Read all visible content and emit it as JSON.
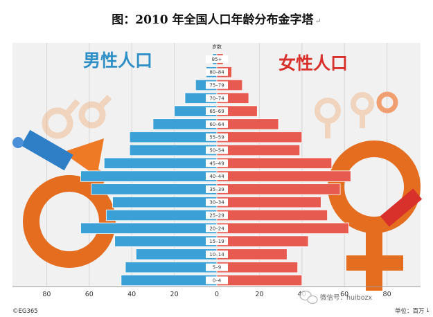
{
  "header": {
    "title": "图：2010 年全国人口年龄分布金字塔",
    "title_mark": "↵"
  },
  "labels": {
    "male": "男性人口",
    "female": "女性人口",
    "age_header": "岁数",
    "copyright": "©EG365",
    "unit": "单位：百万",
    "watermark": "微信号：huibozx",
    "return_mark": "↓"
  },
  "colors": {
    "male": "#3aa0d6",
    "female": "#e65a50",
    "male_label": "#2f8fc7",
    "female_label": "#d8302a"
  },
  "chart_data": {
    "type": "bar",
    "orientation": "horizontal-pyramid",
    "categories": [
      "0–4",
      "5–9",
      "10–14",
      "15–19",
      "20–24",
      "25–29",
      "30–34",
      "35–39",
      "40–44",
      "45–49",
      "50–54",
      "55–59",
      "60–64",
      "65–69",
      "70–74",
      "75–79",
      "80–84",
      "85+"
    ],
    "series": [
      {
        "name": "男性人口",
        "values": [
          45,
          43,
          38,
          48,
          64,
          52,
          49,
          59,
          64,
          53,
          41,
          41,
          30,
          20,
          15,
          10,
          5,
          2
        ]
      },
      {
        "name": "女性人口",
        "values": [
          40,
          38,
          33,
          43,
          62,
          52,
          49,
          58,
          63,
          54,
          39,
          40,
          29,
          19,
          15,
          12,
          7,
          3
        ]
      }
    ],
    "xticks_left": [
      "80",
      "60",
      "40",
      "20"
    ],
    "xticks_right": [
      "0",
      "20",
      "40",
      "60",
      "80"
    ],
    "xlim": [
      -85,
      85
    ]
  }
}
